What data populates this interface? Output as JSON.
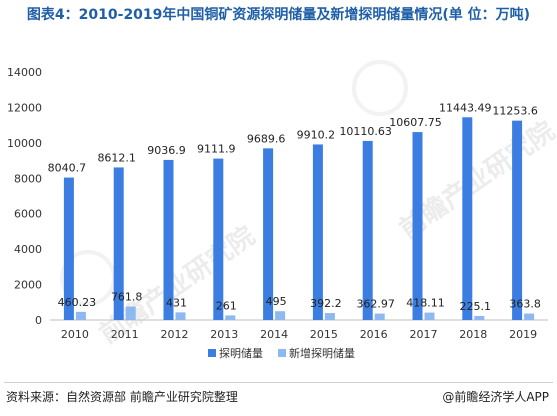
{
  "title": "图表4：2010-2019年中国铜矿资源探明储量及新增探明储量情况(单 位：万吨)",
  "source": "资料来源：自然资源部 前瞻产业研究院整理",
  "brand": "@前瞻经济学人APP",
  "watermark": "前瞻产业研究院",
  "colors": {
    "series1": "#3b7de0",
    "series2": "#8db8f0",
    "title": "#1f5fa8"
  },
  "chart_data": {
    "type": "bar",
    "categories": [
      "2010",
      "2011",
      "2012",
      "2013",
      "2014",
      "2015",
      "2016",
      "2017",
      "2018",
      "2019"
    ],
    "series": [
      {
        "name": "探明储量",
        "values": [
          8040.7,
          8612.1,
          9036.9,
          9111.9,
          9689.6,
          9910.2,
          10110.63,
          10607.75,
          11443.49,
          11253.6
        ],
        "labels": [
          "8040.7",
          "8612.1",
          "9036.9",
          "9111.9",
          "9689.6",
          "9910.2",
          "10110.63",
          "10607.75",
          "11443.49",
          "11253.6"
        ]
      },
      {
        "name": "新增探明储量",
        "values": [
          460.23,
          761.8,
          431,
          261,
          495,
          392.2,
          362.97,
          418.11,
          225.1,
          363.8
        ],
        "labels": [
          "460.23",
          "761.8",
          "431",
          "261",
          "495",
          "392.2",
          "362.97",
          "418.11",
          "225.1",
          "363.8"
        ]
      }
    ],
    "ylim": [
      0,
      14000
    ],
    "yticks": [
      "0",
      "2000",
      "4000",
      "6000",
      "8000",
      "10000",
      "12000",
      "14000"
    ],
    "legend": "bottom"
  }
}
